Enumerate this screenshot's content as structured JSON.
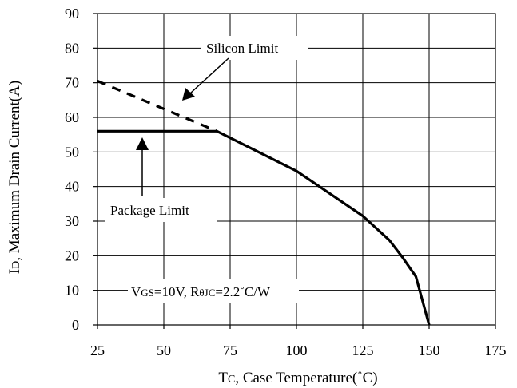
{
  "chart_data": {
    "type": "line",
    "title": "",
    "xlabel_main": "T",
    "xlabel_sub": "C",
    "xlabel_rest": ", Case Temperature(˚C)",
    "ylabel_main": "I",
    "ylabel_sub": "D",
    "ylabel_rest": ", Maximum Drain Current(A)",
    "xlim": [
      25,
      175
    ],
    "ylim": [
      0,
      90
    ],
    "x_ticks": [
      25,
      50,
      75,
      100,
      125,
      150,
      175
    ],
    "y_ticks": [
      0,
      10,
      20,
      30,
      40,
      50,
      60,
      70,
      80,
      90
    ],
    "grid": true,
    "series": [
      {
        "name": "Package Limit",
        "style": "solid",
        "x": [
          25,
          70,
          100,
          125,
          135,
          140,
          145,
          150
        ],
        "y": [
          56,
          56,
          44.5,
          31.5,
          24.5,
          19.5,
          14,
          0
        ]
      },
      {
        "name": "Silicon Limit",
        "style": "dashed",
        "x": [
          25,
          70
        ],
        "y": [
          70.5,
          56
        ]
      }
    ],
    "annotations": {
      "silicon": "Silicon Limit",
      "package": "Package Limit",
      "cond_v": "V",
      "cond_v_sub": "GS",
      "cond_mid": "=10V, R",
      "cond_theta_sub": "θJC",
      "cond_end": "=2.2˚C/W"
    },
    "colors": {
      "line": "#000000",
      "background": "#ffffff"
    }
  }
}
